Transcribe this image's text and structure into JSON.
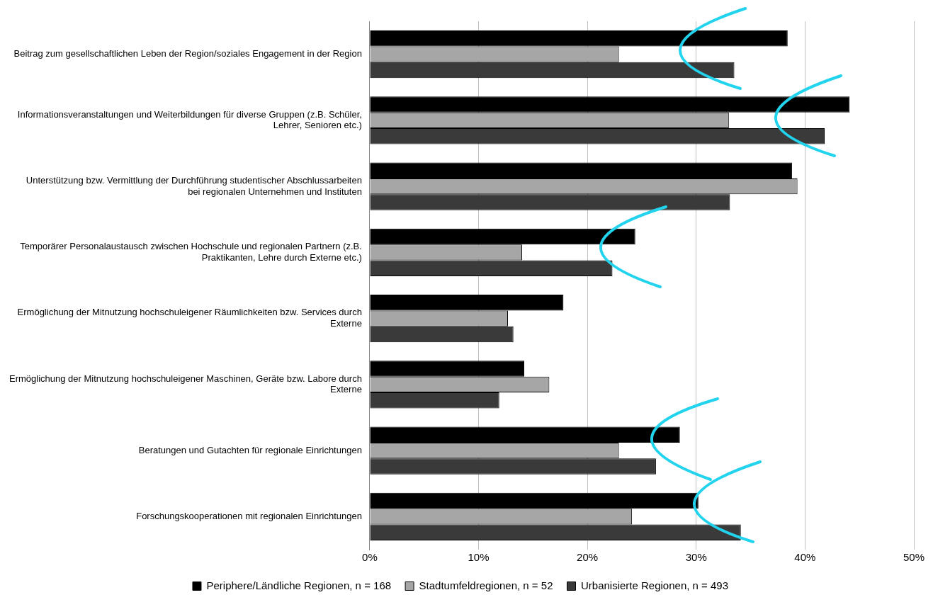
{
  "chart_data": {
    "type": "bar",
    "orientation": "horizontal",
    "categories": [
      "Beitrag zum gesellschaftlichen Leben der Region/soziales Engagement in der Region",
      "Informationsveranstaltungen und Weiterbildungen für diverse Gruppen (z.B. Schüler, Lehrer, Senioren etc.)",
      "Unterstützung bzw. Vermittlung der Durchführung studentischer Abschlussarbeiten bei regionalen Unternehmen und Instituten",
      "Temporärer Personalaustausch zwischen Hochschule und regionalen Partnern (z.B. Praktikanten, Lehre durch Externe etc.)",
      "Ermöglichung der Mitnutzung hochschuleigener Räumlichkeiten bzw. Services durch Externe",
      "Ermöglichung der Mitnutzung hochschuleigener Maschinen, Geräte bzw. Labore durch Externe",
      "Beratungen und Gutachten für regionale Einrichtungen",
      "Forschungskooperationen mit regionalen Einrichtungen"
    ],
    "series": [
      {
        "name": "Periphere/Ländliche Regionen, n = 168",
        "color": "#000000",
        "values": [
          38.4,
          44.1,
          38.8,
          24.4,
          17.8,
          14.2,
          28.5,
          30.2
        ]
      },
      {
        "name": "Stadtumfeldregionen, n = 52",
        "color": "#a6a6a6",
        "values": [
          22.9,
          33.0,
          39.3,
          14.0,
          12.7,
          16.5,
          22.9,
          24.1
        ]
      },
      {
        "name": "Urbanisierte Regionen, n = 493",
        "color": "#3a3a3a",
        "values": [
          33.5,
          41.8,
          33.1,
          22.3,
          13.2,
          11.9,
          26.3,
          34.1
        ]
      }
    ],
    "xlim": [
      0,
      50
    ],
    "xticks": [
      {
        "value": 0,
        "label": "0%"
      },
      {
        "value": 10,
        "label": "10%"
      },
      {
        "value": 20,
        "label": "20%"
      },
      {
        "value": 30,
        "label": "30%"
      },
      {
        "value": 40,
        "label": "40%"
      },
      {
        "value": 50,
        "label": "50%"
      }
    ],
    "grid": "x",
    "legend": "bottom"
  }
}
